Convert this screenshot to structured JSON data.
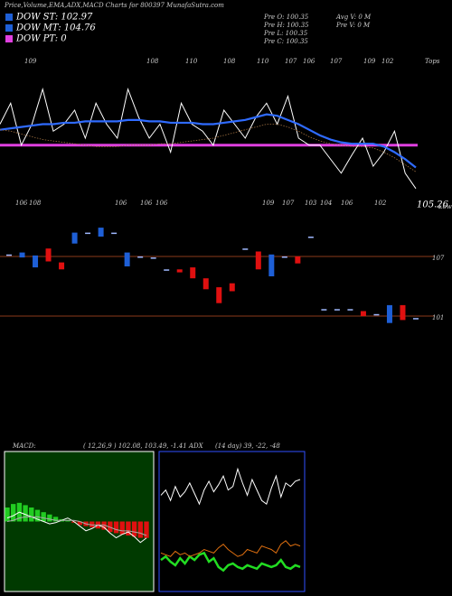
{
  "header": {
    "title": "Price,Volume,EMA,ADX,MACD Charts for 800397 MunafaSutra.com",
    "legend": [
      {
        "label": "DOW ST: 102.97",
        "color": "#1e5fd6"
      },
      {
        "label": "DOW MT: 104.76",
        "color": "#1e5fd6"
      },
      {
        "label": "DOW PT: 0",
        "color": "#e040e0"
      }
    ],
    "stats": [
      "Pre O: 100.35",
      "Pre H: 100.35",
      "Pre L: 100.35",
      "Pre C: 100.35",
      "Avg V: 0 M",
      "Pre V: 0 M"
    ]
  },
  "tops": {
    "labels": [
      "109",
      "108",
      "110",
      "108",
      "110",
      "107",
      "106",
      "107",
      "109",
      "102"
    ],
    "caption": "Tops"
  },
  "lows": {
    "labels": [
      "106",
      "108",
      "106",
      "106",
      "106",
      "109",
      "107",
      "103",
      "104",
      "106",
      "102"
    ],
    "value": "105.26",
    "caption": "Lows"
  },
  "macd_label": {
    "name": "MACD:",
    "text": "( 12,26,9 ) 102.08, 103.49, -1.41 ADX",
    "adx": "(14 day) 39, -22, -48"
  },
  "chart_data": [
    {
      "type": "line",
      "ylim": [
        101,
        111
      ],
      "hline": {
        "value": 104.5,
        "color": "#e040e0"
      },
      "series": [
        {
          "color": "#ffffff",
          "values": [
            106,
            107.5,
            104.5,
            106,
            108.5,
            105.5,
            106,
            107,
            105,
            107.5,
            106,
            105,
            108.5,
            106.5,
            105,
            106,
            104,
            107.5,
            106,
            105.5,
            104.5,
            107,
            106,
            105,
            106.5,
            107.5,
            106,
            108,
            105,
            104.5,
            104.5,
            103.5,
            102.5,
            103.8,
            105,
            103,
            104,
            105.5,
            102.5,
            101.4
          ]
        },
        {
          "color": "#2f6bff",
          "values": [
            105.6,
            105.7,
            105.8,
            105.9,
            106.0,
            106.0,
            106.1,
            106.1,
            106.2,
            106.2,
            106.2,
            106.2,
            106.3,
            106.3,
            106.2,
            106.2,
            106.1,
            106.1,
            106.1,
            106.0,
            106.0,
            106.1,
            106.2,
            106.3,
            106.5,
            106.7,
            106.6,
            106.3,
            106.0,
            105.6,
            105.2,
            104.9,
            104.7,
            104.6,
            104.6,
            104.6,
            104.4,
            104.0,
            103.5,
            102.9
          ]
        },
        {
          "color": "#a07040",
          "values": [
            105.6,
            105.5,
            105.3,
            105.1,
            104.9,
            104.8,
            104.7,
            104.6,
            104.5,
            104.4,
            104.4,
            104.4,
            104.5,
            104.5,
            104.5,
            104.6,
            104.6,
            104.7,
            104.8,
            104.9,
            105.0,
            105.2,
            105.4,
            105.6,
            105.8,
            106.0,
            106.0,
            105.8,
            105.5,
            105.1,
            104.8,
            104.6,
            104.5,
            104.4,
            104.4,
            104.3,
            104.0,
            103.6,
            103.1,
            102.6
          ]
        }
      ]
    },
    {
      "type": "candlestick",
      "ylim": [
        98,
        111
      ],
      "yticks": [
        101,
        107
      ],
      "colors": {
        "up": "#1e5fd6",
        "down": "#e01010",
        "flat": "#9fb8ff"
      },
      "open": [
        107.2,
        106.9,
        105.9,
        107.8,
        106.4,
        108.3,
        109.4,
        109.0,
        109.4,
        106.0,
        107.0,
        106.9,
        105.7,
        105.7,
        105.9,
        104.8,
        103.9,
        104.3,
        107.8,
        107.5,
        105.0,
        107.0,
        107.0,
        109.0,
        101.7,
        101.7,
        101.7,
        101.5,
        101.2,
        100.3,
        102.1,
        100.8
      ],
      "close": [
        107.2,
        107.4,
        107.1,
        106.5,
        105.7,
        109.4,
        109.4,
        109.9,
        109.4,
        107.4,
        107.0,
        106.9,
        105.7,
        105.4,
        104.8,
        103.7,
        102.3,
        103.5,
        107.8,
        105.7,
        107.2,
        107.0,
        106.3,
        109.0,
        101.7,
        101.7,
        101.7,
        101.0,
        101.2,
        102.1,
        100.6,
        100.8
      ]
    },
    {
      "type": "macd",
      "ylim": [
        -6,
        6
      ],
      "colors": {
        "up": "#22cc22",
        "down": "#e01010"
      },
      "histogram": [
        1.2,
        1.5,
        1.6,
        1.4,
        1.2,
        1.0,
        0.8,
        0.6,
        0.4,
        0.2,
        0.1,
        -0.1,
        -0.3,
        -0.4,
        -0.5,
        -0.6,
        -0.7,
        -0.9,
        -1.0,
        -1.1,
        -1.2,
        -1.3,
        -1.4,
        -1.41
      ],
      "series": [
        {
          "color": "#ffffff",
          "values": [
            0.3,
            0.5,
            0.8,
            0.6,
            0.4,
            0.2,
            0.0,
            -0.2,
            -0.1,
            0.1,
            0.3,
            0.0,
            -0.4,
            -0.8,
            -0.6,
            -0.3,
            -0.5,
            -1.0,
            -1.4,
            -1.1,
            -0.9,
            -1.3,
            -1.8,
            -1.41
          ]
        },
        {
          "color": "#aaaaaa",
          "values": [
            0.0,
            0.1,
            0.3,
            0.4,
            0.4,
            0.4,
            0.3,
            0.2,
            0.1,
            0.1,
            0.1,
            0.1,
            0.0,
            -0.2,
            -0.3,
            -0.3,
            -0.3,
            -0.5,
            -0.7,
            -0.8,
            -0.8,
            -0.9,
            -1.0,
            -1.2
          ]
        }
      ]
    },
    {
      "type": "line",
      "ylim": [
        0,
        80
      ],
      "series": [
        {
          "color": "#ffffff",
          "values": [
            55,
            58,
            52,
            60,
            54,
            57,
            62,
            56,
            50,
            58,
            63,
            57,
            61,
            66,
            58,
            60,
            70,
            62,
            55,
            64,
            58,
            52,
            50,
            59,
            66,
            54,
            62,
            60,
            63,
            64
          ]
        },
        {
          "color": "#22dd22",
          "values": [
            18,
            20,
            17,
            15,
            19,
            16,
            20,
            18,
            21,
            22,
            17,
            19,
            14,
            12,
            15,
            16,
            14,
            13,
            15,
            14,
            13,
            16,
            15,
            14,
            15,
            18,
            14,
            13,
            15,
            14
          ]
        },
        {
          "color": "#e07010",
          "values": [
            22,
            21,
            20,
            23,
            21,
            22,
            20,
            21,
            22,
            24,
            23,
            22,
            25,
            27,
            24,
            22,
            20,
            21,
            24,
            23,
            22,
            26,
            25,
            24,
            22,
            27,
            29,
            26,
            27,
            26
          ]
        }
      ]
    }
  ]
}
